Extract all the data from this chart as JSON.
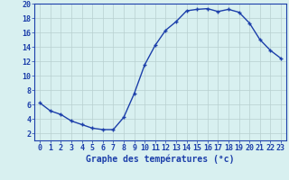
{
  "x": [
    0,
    1,
    2,
    3,
    4,
    5,
    6,
    7,
    8,
    9,
    10,
    11,
    12,
    13,
    14,
    15,
    16,
    17,
    18,
    19,
    20,
    21,
    22,
    23
  ],
  "y": [
    6.2,
    5.1,
    4.6,
    3.7,
    3.2,
    2.7,
    2.5,
    2.5,
    4.2,
    7.5,
    11.5,
    14.2,
    16.3,
    17.5,
    19.0,
    19.2,
    19.3,
    18.9,
    19.2,
    18.8,
    17.3,
    15.0,
    13.5,
    12.4
  ],
  "line_color": "#1c3faa",
  "marker": "+",
  "marker_size": 3.5,
  "linewidth": 1.0,
  "xlabel": "Graphe des températures (°c)",
  "xlabel_color": "#1c3faa",
  "xlabel_fontsize": 7,
  "background_color": "#d8f0f0",
  "grid_color": "#b8d0d0",
  "axis_label_color": "#1c3faa",
  "tick_fontsize": 6,
  "ylim": [
    1.0,
    20.0
  ],
  "xlim": [
    -0.5,
    23.5
  ],
  "yticks": [
    2,
    4,
    6,
    8,
    10,
    12,
    14,
    16,
    18,
    20
  ],
  "xticks": [
    0,
    1,
    2,
    3,
    4,
    5,
    6,
    7,
    8,
    9,
    10,
    11,
    12,
    13,
    14,
    15,
    16,
    17,
    18,
    19,
    20,
    21,
    22,
    23
  ]
}
